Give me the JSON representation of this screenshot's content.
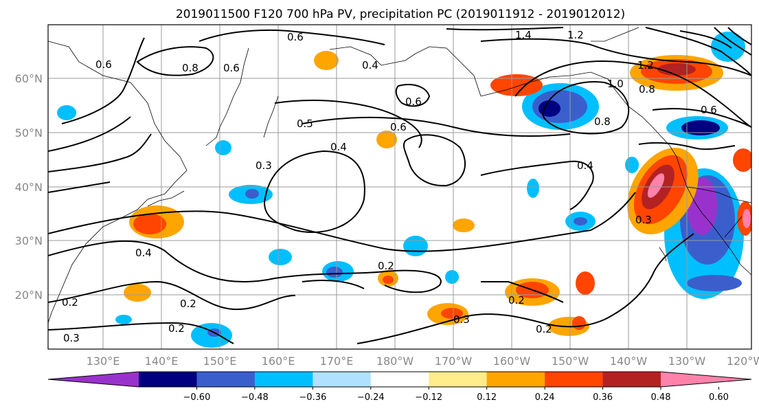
{
  "title": "2019011500 F120 700 hPa PV, precipitation PC (2019011912 - 2019012012)",
  "lat_labels": [
    "60°N",
    "50°N",
    "40°N",
    "30°N",
    "20°N"
  ],
  "lon_labels": [
    "130°E",
    "140°E",
    "150°E",
    "160°E",
    "170°E",
    "180°W",
    "170°W",
    "160°W",
    "150°W",
    "140°W",
    "130°W",
    "120°W"
  ],
  "colorbar": {
    "colors": [
      "#9932cc",
      "#000080",
      "#3a5fcd",
      "#00bfff",
      "#b0e2ff",
      "#ffffff",
      "#ffec8b",
      "#ffa500",
      "#ff4500",
      "#b22222",
      "#ff82ab"
    ],
    "tick_labels": [
      "−0.60",
      "−0.48",
      "−0.36",
      "−0.24",
      "−0.12",
      "0.12",
      "0.24",
      "0.36",
      "0.48",
      "0.60"
    ]
  },
  "contour_labels": [
    "0.6",
    "1.4",
    "1.2",
    "0.8",
    "0.6",
    "0.4",
    "1.2",
    "0.8",
    "0.6",
    "0.6",
    "0.6",
    "0.8",
    "1.0",
    "0.6",
    "0.5",
    "0.4",
    "0.3",
    "0.4",
    "0.4",
    "0.3",
    "0.2",
    "0.3",
    "0.2",
    "0.2",
    "0.2",
    "0.2",
    "0.2",
    "0.3"
  ],
  "colors": {
    "grid": "#9a9a9a",
    "axis_labels": "#888888"
  }
}
